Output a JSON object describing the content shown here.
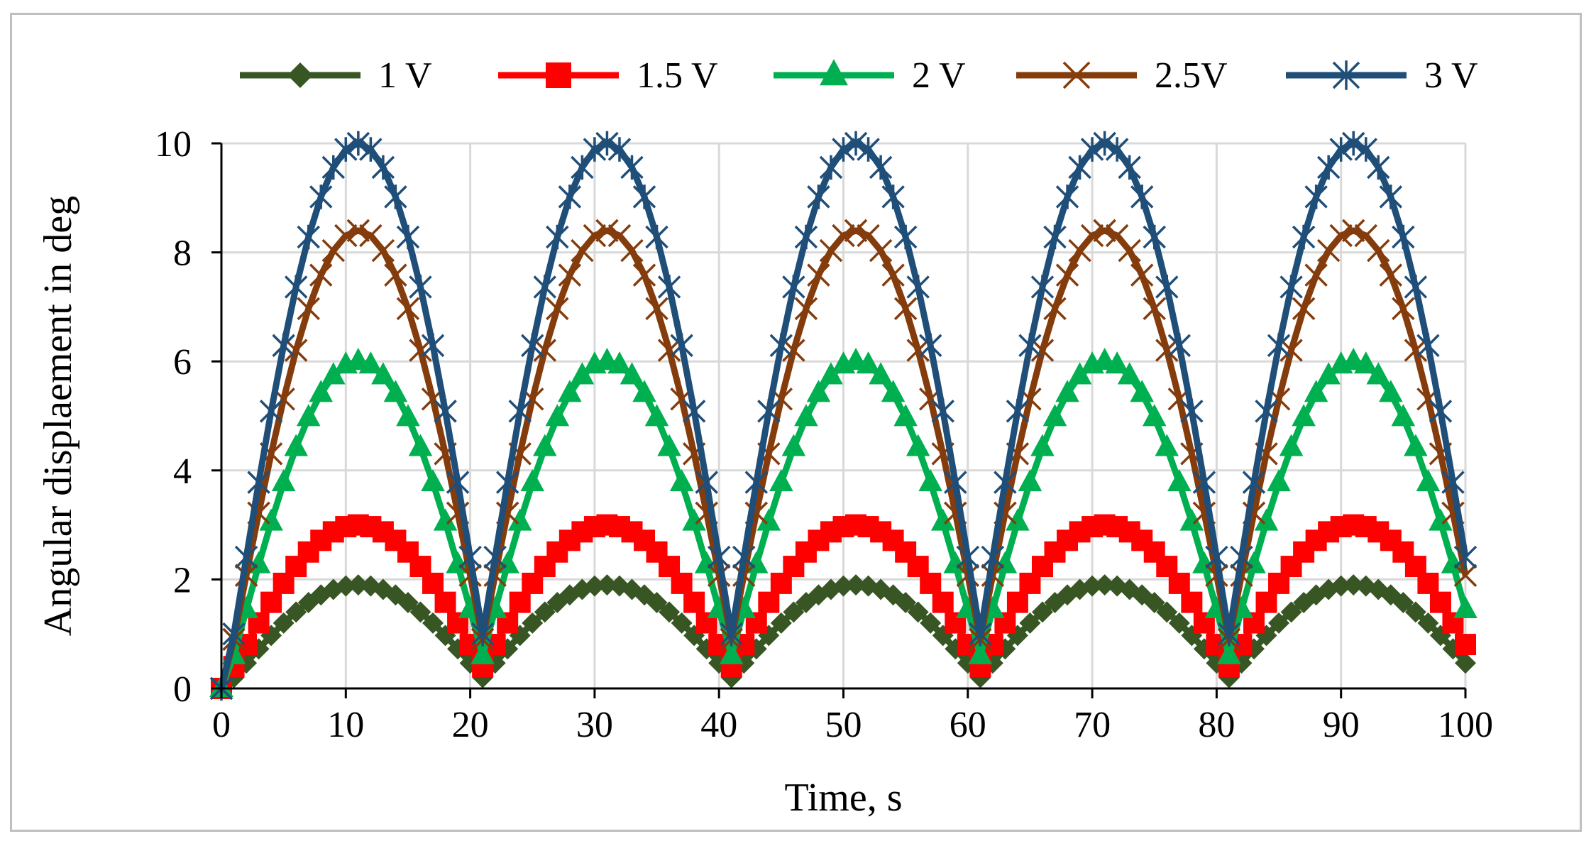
{
  "chart_data": {
    "type": "line",
    "title": "",
    "xlabel": "Time, s",
    "ylabel": "Angular displaement in deg",
    "xlim": [
      0,
      100
    ],
    "ylim": [
      0,
      10
    ],
    "xticks": [
      0,
      10,
      20,
      30,
      40,
      50,
      60,
      70,
      80,
      90,
      100
    ],
    "yticks": [
      0,
      2,
      4,
      6,
      8,
      10
    ],
    "grid": true,
    "legend_position": "top",
    "sample_step_s": 1,
    "waveform": "rectified sine, period 20 s, peaks near t = 11, 31, 51, 71, 91",
    "series": [
      {
        "name": "1 V",
        "color": "#375623",
        "marker": "diamond",
        "peak": 1.9,
        "trough": 0.2
      },
      {
        "name": "1.5 V",
        "color": "#ff0000",
        "marker": "square",
        "peak": 3.0,
        "trough": 0.4
      },
      {
        "name": "2 V",
        "color": "#00b050",
        "marker": "triangle",
        "peak": 6.0,
        "trough": 0.6
      },
      {
        "name": "2.5V",
        "color": "#843c0c",
        "marker": "x",
        "peak": 8.4,
        "trough": 0.9
      },
      {
        "name": "3 V",
        "color": "#1f4e79",
        "marker": "star",
        "peak": 10.0,
        "trough": 1.0
      }
    ]
  }
}
